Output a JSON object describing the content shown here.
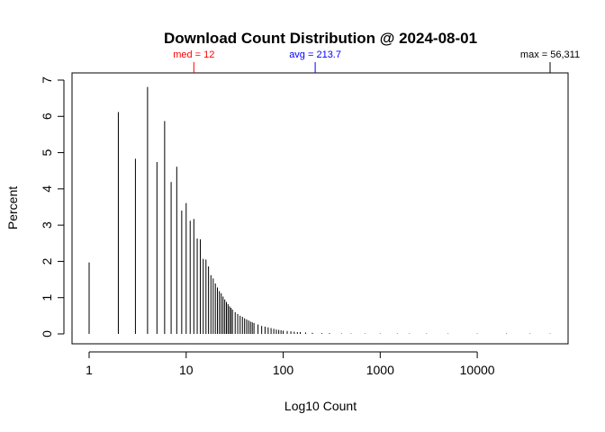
{
  "chart_data": {
    "type": "bar",
    "title": "Download Count Distribution @ 2024-08-01",
    "xlabel": "Log10 Count",
    "ylabel": "Percent",
    "x_scale": "log10",
    "xlim": [
      1,
      56311
    ],
    "ylim": [
      0,
      7
    ],
    "x_ticks": [
      1,
      10,
      100,
      1000,
      10000
    ],
    "x_tick_labels": [
      "1",
      "10",
      "100",
      "1000",
      "10000"
    ],
    "y_ticks": [
      0,
      1,
      2,
      3,
      4,
      5,
      6,
      7
    ],
    "y_tick_labels": [
      "0",
      "1",
      "2",
      "3",
      "4",
      "5",
      "6",
      "7"
    ],
    "grid": false,
    "series": [
      {
        "x": [
          1,
          2,
          3,
          4,
          5,
          6,
          7,
          8,
          9,
          10,
          11,
          12,
          13,
          14,
          15,
          16,
          17,
          18,
          19,
          20,
          21,
          22,
          23,
          24,
          25,
          26,
          27,
          28,
          29,
          30,
          32,
          34,
          36,
          38,
          40,
          42,
          44,
          46,
          48,
          50,
          55,
          60,
          65,
          70,
          75,
          80,
          85,
          90,
          95,
          100,
          110,
          120,
          130,
          140,
          150,
          170,
          200,
          250,
          300,
          400,
          500,
          700,
          1000,
          1500,
          2000,
          3000,
          5000,
          10000,
          20000,
          35000,
          56311
        ],
        "values": [
          1.97,
          6.12,
          4.83,
          6.81,
          4.74,
          5.87,
          4.19,
          4.61,
          3.4,
          3.61,
          3.12,
          3.17,
          2.63,
          2.61,
          2.07,
          2.05,
          1.86,
          1.62,
          1.53,
          1.39,
          1.28,
          1.18,
          1.12,
          1.03,
          0.95,
          0.88,
          0.82,
          0.76,
          0.72,
          0.67,
          0.6,
          0.55,
          0.5,
          0.47,
          0.43,
          0.4,
          0.37,
          0.34,
          0.32,
          0.3,
          0.26,
          0.22,
          0.2,
          0.18,
          0.16,
          0.14,
          0.12,
          0.11,
          0.1,
          0.09,
          0.08,
          0.07,
          0.06,
          0.05,
          0.05,
          0.04,
          0.03,
          0.02,
          0.02,
          0.01,
          0.01,
          0.01,
          0.01,
          0.01,
          0.01,
          0.01,
          0.01,
          0.01,
          0.01,
          0.01,
          0.01
        ]
      }
    ],
    "annotations": [
      {
        "label": "med = 12",
        "x": 12,
        "color": "#ff0000"
      },
      {
        "label": "avg = 213.7",
        "x": 213.7,
        "color": "#0000ff"
      },
      {
        "label": "max = 56,311",
        "x": 56311,
        "color": "#000000"
      }
    ]
  }
}
